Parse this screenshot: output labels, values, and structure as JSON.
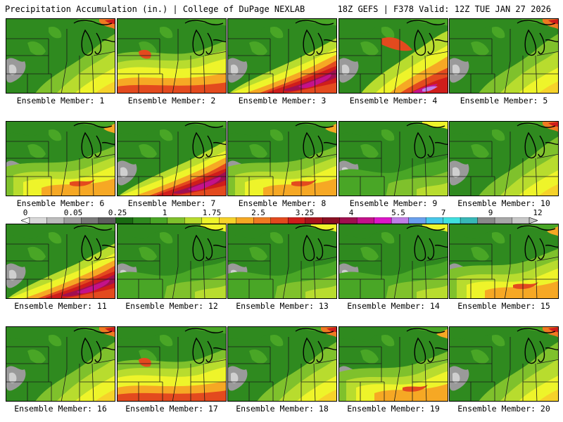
{
  "header": {
    "title_left": "Precipitation Accumulation (in.) | College of DuPage NEXLAB",
    "title_right": "18Z GEFS | F378 Valid: 12Z TUE JAN 27 2026"
  },
  "label_prefix": "Ensemble Member:",
  "members": [
    {
      "label": "Ensemble Member: 1",
      "pattern": "east_mid"
    },
    {
      "label": "Ensemble Member: 2",
      "pattern": "south_band"
    },
    {
      "label": "Ensemble Member: 3",
      "pattern": "heavy_band"
    },
    {
      "label": "Ensemble Member: 4",
      "pattern": "heavy_south"
    },
    {
      "label": "Ensemble Member: 5",
      "pattern": "east_mid"
    },
    {
      "label": "Ensemble Member: 6",
      "pattern": "mid_band"
    },
    {
      "label": "Ensemble Member: 7",
      "pattern": "heavy_band"
    },
    {
      "label": "Ensemble Member: 8",
      "pattern": "mid_band"
    },
    {
      "label": "Ensemble Member: 9",
      "pattern": "light"
    },
    {
      "label": "Ensemble Member: 10",
      "pattern": "east_mid"
    },
    {
      "label": "Ensemble Member: 11",
      "pattern": "heavy_band"
    },
    {
      "label": "Ensemble Member: 12",
      "pattern": "light"
    },
    {
      "label": "Ensemble Member: 13",
      "pattern": "light"
    },
    {
      "label": "Ensemble Member: 14",
      "pattern": "light"
    },
    {
      "label": "Ensemble Member: 15",
      "pattern": "mid_band"
    },
    {
      "label": "Ensemble Member: 16",
      "pattern": "east_mid"
    },
    {
      "label": "Ensemble Member: 17",
      "pattern": "south_band"
    },
    {
      "label": "Ensemble Member: 18",
      "pattern": "east_mid"
    },
    {
      "label": "Ensemble Member: 19",
      "pattern": "mid_band"
    },
    {
      "label": "Ensemble Member: 20",
      "pattern": "east_mid"
    }
  ],
  "colorbar": {
    "ticks": [
      "0",
      "0.05",
      "0.25",
      "1",
      "1.75",
      "2.5",
      "3.25",
      "4",
      "5.5",
      "7",
      "9",
      "12"
    ],
    "colors": [
      "#d9d9d9",
      "#bdbdbd",
      "#9e9e9e",
      "#7a7a7a",
      "#5e5e5e",
      "#1a6b12",
      "#2f8a1f",
      "#49a626",
      "#7fc12c",
      "#b8dc2e",
      "#eef42a",
      "#f6d22a",
      "#f6a824",
      "#ef7a22",
      "#e34a1e",
      "#cf1d1b",
      "#a8141e",
      "#8a1024",
      "#a0104f",
      "#c4128a",
      "#dc16c8",
      "#c07ee8",
      "#6aa0ee",
      "#48c8ea",
      "#40e0e0",
      "#38b8b8",
      "#8a8a8a",
      "#a8a8a8",
      "#c8c8c8"
    ]
  }
}
